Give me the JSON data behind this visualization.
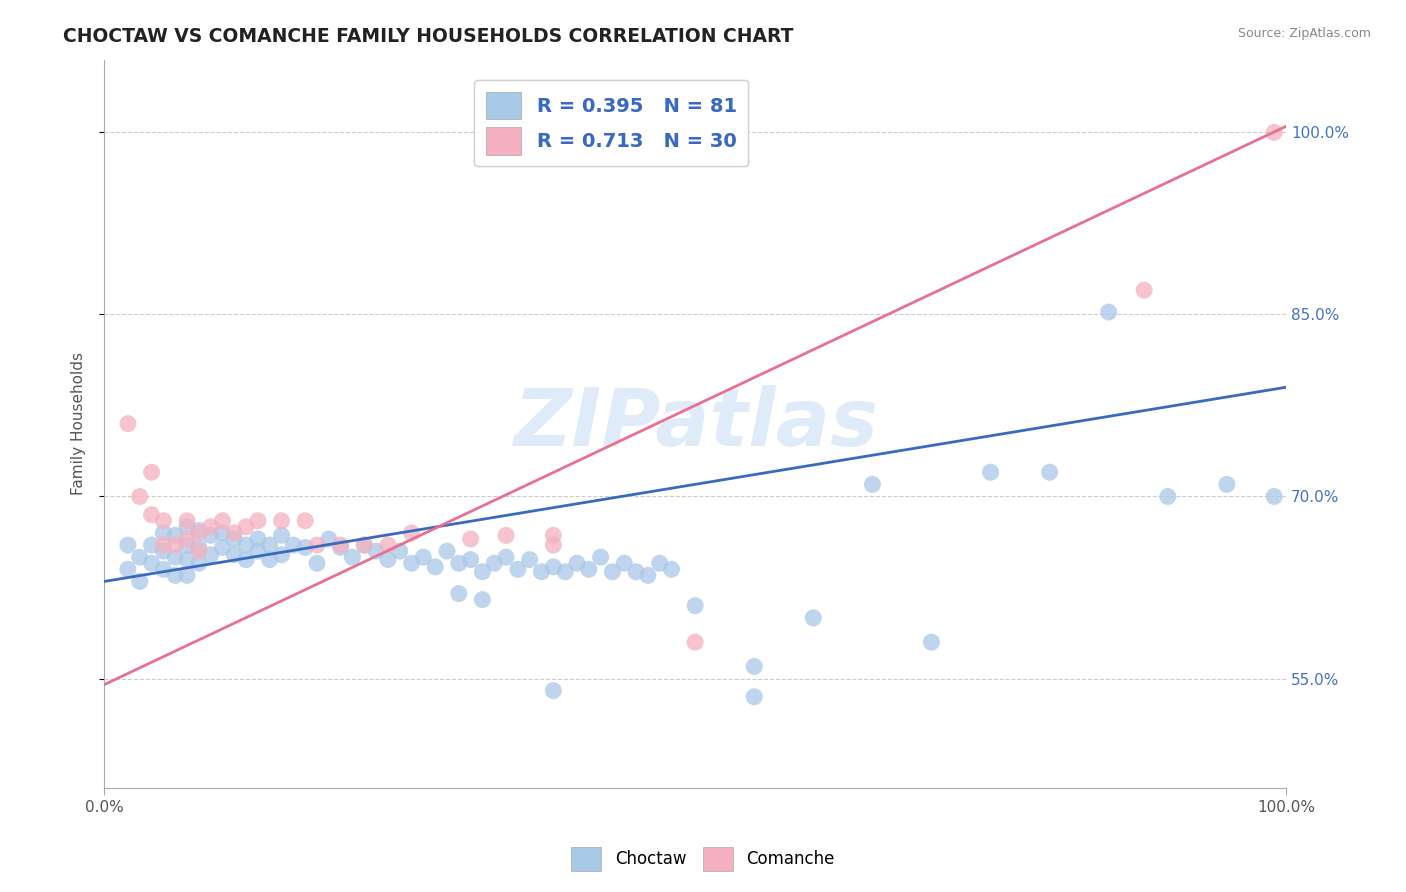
{
  "title": "CHOCTAW VS COMANCHE FAMILY HOUSEHOLDS CORRELATION CHART",
  "source": "Source: ZipAtlas.com",
  "ylabel": "Family Households",
  "xlim": [
    0.0,
    1.0
  ],
  "ylim": [
    0.46,
    1.06
  ],
  "x_ticks": [
    0.0,
    1.0
  ],
  "x_tick_labels": [
    "0.0%",
    "100.0%"
  ],
  "y_ticks": [
    0.55,
    0.7,
    0.85,
    1.0
  ],
  "y_tick_labels": [
    "55.0%",
    "70.0%",
    "85.0%",
    "100.0%"
  ],
  "choctaw_R": 0.395,
  "choctaw_N": 81,
  "comanche_R": 0.713,
  "comanche_N": 30,
  "choctaw_color": "#a8c8e8",
  "comanche_color": "#f4b0c0",
  "choctaw_line_color": "#3a6abf",
  "comanche_line_color": "#e87090",
  "tick_label_color": "#4472c4",
  "legend_label_choctaw": "Choctaw",
  "legend_label_comanche": "Comanche",
  "watermark": "ZIPatlas",
  "background_color": "#ffffff",
  "grid_color": "#cccccc",
  "choctaw_line_x0": 0.0,
  "choctaw_line_y0": 0.63,
  "choctaw_line_x1": 1.0,
  "choctaw_line_y1": 0.79,
  "comanche_line_x0": 0.0,
  "comanche_line_y0": 0.545,
  "comanche_line_x1": 1.0,
  "comanche_line_y1": 1.005,
  "choctaw_x": [
    0.02,
    0.02,
    0.03,
    0.03,
    0.04,
    0.04,
    0.05,
    0.05,
    0.05,
    0.06,
    0.06,
    0.06,
    0.07,
    0.07,
    0.07,
    0.07,
    0.08,
    0.08,
    0.08,
    0.09,
    0.09,
    0.1,
    0.1,
    0.11,
    0.11,
    0.12,
    0.12,
    0.13,
    0.13,
    0.14,
    0.14,
    0.15,
    0.15,
    0.16,
    0.17,
    0.18,
    0.19,
    0.2,
    0.21,
    0.22,
    0.23,
    0.24,
    0.25,
    0.26,
    0.27,
    0.28,
    0.29,
    0.3,
    0.31,
    0.32,
    0.33,
    0.34,
    0.35,
    0.36,
    0.37,
    0.38,
    0.39,
    0.4,
    0.41,
    0.42,
    0.43,
    0.44,
    0.45,
    0.46,
    0.47,
    0.48,
    0.3,
    0.32,
    0.5,
    0.55,
    0.6,
    0.65,
    0.7,
    0.75,
    0.8,
    0.85,
    0.9,
    0.95,
    0.99,
    0.55,
    0.38
  ],
  "choctaw_y": [
    0.66,
    0.64,
    0.65,
    0.63,
    0.66,
    0.645,
    0.67,
    0.655,
    0.64,
    0.668,
    0.65,
    0.635,
    0.675,
    0.66,
    0.648,
    0.635,
    0.672,
    0.658,
    0.645,
    0.668,
    0.652,
    0.67,
    0.658,
    0.665,
    0.652,
    0.66,
    0.648,
    0.655,
    0.665,
    0.66,
    0.648,
    0.668,
    0.652,
    0.66,
    0.658,
    0.645,
    0.665,
    0.658,
    0.65,
    0.66,
    0.655,
    0.648,
    0.655,
    0.645,
    0.65,
    0.642,
    0.655,
    0.645,
    0.648,
    0.638,
    0.645,
    0.65,
    0.64,
    0.648,
    0.638,
    0.642,
    0.638,
    0.645,
    0.64,
    0.65,
    0.638,
    0.645,
    0.638,
    0.635,
    0.645,
    0.64,
    0.62,
    0.615,
    0.61,
    0.56,
    0.6,
    0.71,
    0.58,
    0.72,
    0.72,
    0.852,
    0.7,
    0.71,
    0.7,
    0.535,
    0.54
  ],
  "comanche_x": [
    0.02,
    0.03,
    0.04,
    0.04,
    0.05,
    0.05,
    0.06,
    0.07,
    0.07,
    0.08,
    0.08,
    0.09,
    0.1,
    0.11,
    0.12,
    0.13,
    0.15,
    0.17,
    0.18,
    0.2,
    0.22,
    0.24,
    0.26,
    0.31,
    0.34,
    0.38,
    0.38,
    0.5,
    0.88,
    0.99
  ],
  "comanche_y": [
    0.76,
    0.7,
    0.72,
    0.685,
    0.68,
    0.66,
    0.66,
    0.68,
    0.665,
    0.67,
    0.655,
    0.675,
    0.68,
    0.67,
    0.675,
    0.68,
    0.68,
    0.68,
    0.66,
    0.66,
    0.66,
    0.66,
    0.67,
    0.665,
    0.668,
    0.668,
    0.66,
    0.58,
    0.87,
    1.0
  ]
}
